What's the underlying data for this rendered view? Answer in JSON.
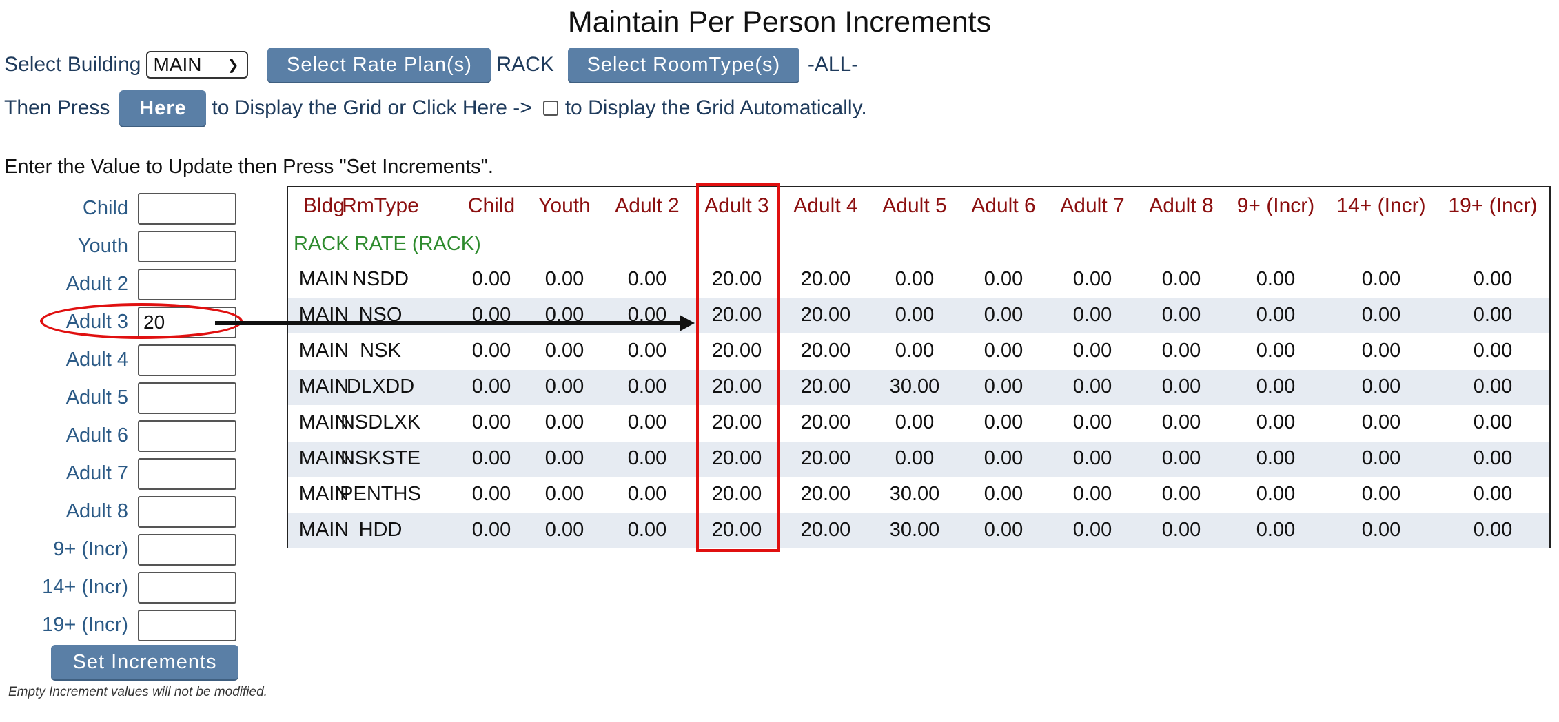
{
  "title": "Maintain Per Person Increments",
  "toolbar": {
    "select_building_label": "Select Building",
    "building_value": "MAIN",
    "select_rate_plan_button": "Select Rate Plan(s)",
    "rate_plan_value": "RACK",
    "select_roomtype_button": "Select RoomType(s)",
    "roomtype_value": "-ALL-",
    "then_press_label": "Then Press",
    "here_button": "Here",
    "display_grid_text": "to Display the Grid or Click Here ->",
    "auto_display_text": "to Display the Grid Automatically."
  },
  "instructions": "Enter the Value to Update then Press \"Set Increments\".",
  "increment_form": {
    "fields": [
      {
        "label": "Child",
        "value": ""
      },
      {
        "label": "Youth",
        "value": ""
      },
      {
        "label": "Adult 2",
        "value": ""
      },
      {
        "label": "Adult 3",
        "value": "20"
      },
      {
        "label": "Adult 4",
        "value": ""
      },
      {
        "label": "Adult 5",
        "value": ""
      },
      {
        "label": "Adult 6",
        "value": ""
      },
      {
        "label": "Adult 7",
        "value": ""
      },
      {
        "label": "Adult 8",
        "value": ""
      },
      {
        "label": "9+ (Incr)",
        "value": ""
      },
      {
        "label": "14+ (Incr)",
        "value": ""
      },
      {
        "label": "19+ (Incr)",
        "value": ""
      }
    ],
    "set_button": "Set Increments",
    "note": "Empty Increment values will not be modified."
  },
  "grid": {
    "columns": [
      "Bldg",
      "RmType",
      "Child",
      "Youth",
      "Adult 2",
      "Adult 3",
      "Adult 4",
      "Adult 5",
      "Adult 6",
      "Adult 7",
      "Adult 8",
      "9+ (Incr)",
      "14+ (Incr)",
      "19+ (Incr)"
    ],
    "rate_plan_label": "RACK RATE (RACK)",
    "rows": [
      [
        "MAIN",
        "NSDD",
        "0.00",
        "0.00",
        "0.00",
        "20.00",
        "20.00",
        "0.00",
        "0.00",
        "0.00",
        "0.00",
        "0.00",
        "0.00",
        "0.00"
      ],
      [
        "MAIN",
        "NSQ",
        "0.00",
        "0.00",
        "0.00",
        "20.00",
        "20.00",
        "0.00",
        "0.00",
        "0.00",
        "0.00",
        "0.00",
        "0.00",
        "0.00"
      ],
      [
        "MAIN",
        "NSK",
        "0.00",
        "0.00",
        "0.00",
        "20.00",
        "20.00",
        "0.00",
        "0.00",
        "0.00",
        "0.00",
        "0.00",
        "0.00",
        "0.00"
      ],
      [
        "MAIN",
        "DLXDD",
        "0.00",
        "0.00",
        "0.00",
        "20.00",
        "20.00",
        "30.00",
        "0.00",
        "0.00",
        "0.00",
        "0.00",
        "0.00",
        "0.00"
      ],
      [
        "MAIN",
        "NSDLXK",
        "0.00",
        "0.00",
        "0.00",
        "20.00",
        "20.00",
        "0.00",
        "0.00",
        "0.00",
        "0.00",
        "0.00",
        "0.00",
        "0.00"
      ],
      [
        "MAIN",
        "NSKSTE",
        "0.00",
        "0.00",
        "0.00",
        "20.00",
        "20.00",
        "0.00",
        "0.00",
        "0.00",
        "0.00",
        "0.00",
        "0.00",
        "0.00"
      ],
      [
        "MAIN",
        "PENTHS",
        "0.00",
        "0.00",
        "0.00",
        "20.00",
        "20.00",
        "30.00",
        "0.00",
        "0.00",
        "0.00",
        "0.00",
        "0.00",
        "0.00"
      ],
      [
        "MAIN",
        "HDD",
        "0.00",
        "0.00",
        "0.00",
        "20.00",
        "20.00",
        "30.00",
        "0.00",
        "0.00",
        "0.00",
        "0.00",
        "0.00",
        "0.00"
      ]
    ]
  },
  "annotation": {
    "highlight_color": "#e01010",
    "arrow_color": "#111111"
  }
}
